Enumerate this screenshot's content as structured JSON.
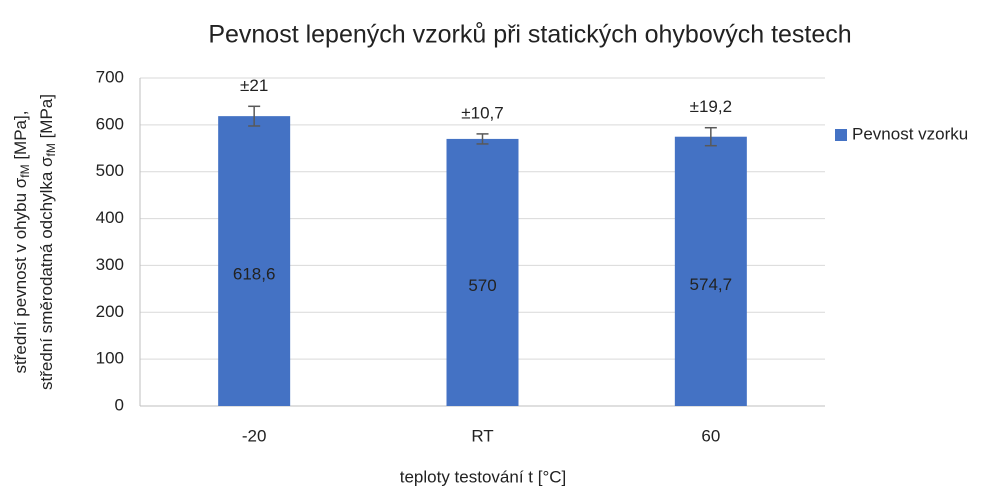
{
  "chart_data": {
    "type": "bar",
    "title": "Pevnost lepených vzorků při statických ohybových testech",
    "xlabel": "teploty testování t [°C]",
    "ylabel": [
      [
        "střední pevnost v ohybu σ",
        "fM",
        " [MPa],"
      ],
      [
        "střední směrodatná odchylka σ",
        "fM",
        " [MPa]"
      ]
    ],
    "categories": [
      "-20",
      "RT",
      "60"
    ],
    "series": [
      {
        "name": "Pevnost vzorku",
        "color": "#4472c4",
        "values": [
          618.6,
          570,
          574.7
        ],
        "value_labels": [
          "618,6",
          "570",
          "574,7"
        ],
        "errors": [
          21,
          10.7,
          19.2
        ],
        "error_labels": [
          "±21",
          "±10,7",
          "±19,2"
        ]
      }
    ],
    "ylim": [
      0,
      700
    ],
    "yticks": [
      0,
      100,
      200,
      300,
      400,
      500,
      600,
      700
    ],
    "grid": true,
    "legend": "right"
  }
}
